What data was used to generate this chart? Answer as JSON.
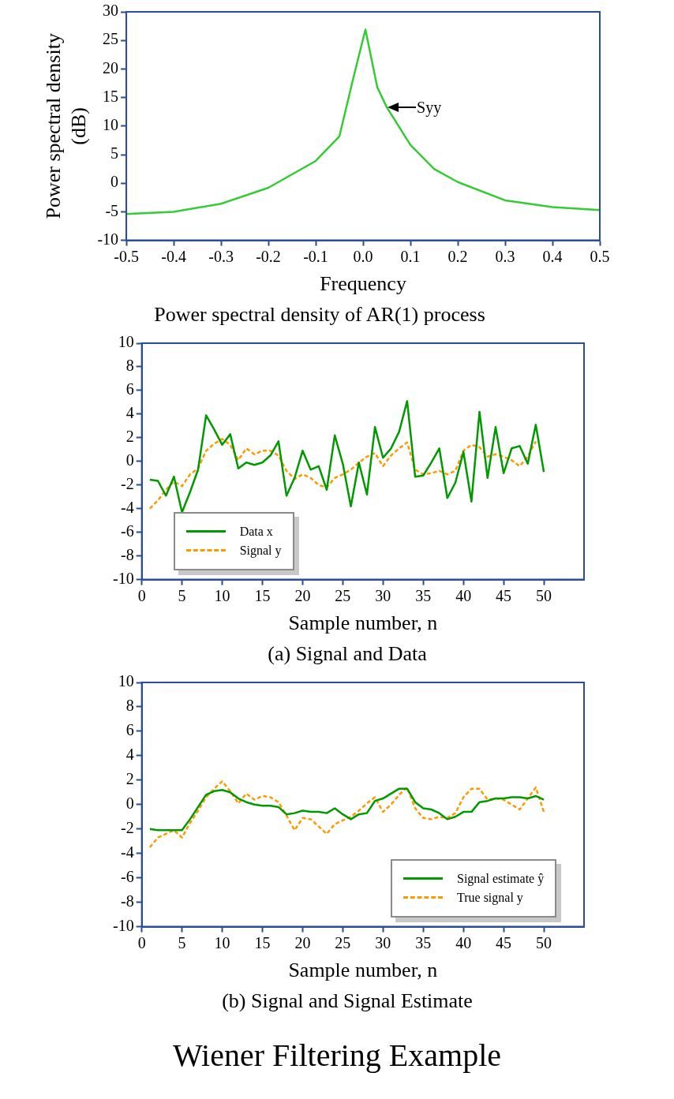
{
  "chart_data": [
    {
      "type": "line",
      "title": "Power spectral density of AR(1) process",
      "xlabel": "Frequency",
      "ylabel": "Power spectral density (dB)",
      "xlim": [
        -0.5,
        0.5
      ],
      "ylim": [
        -10,
        30
      ],
      "xticks": [
        -0.5,
        -0.4,
        -0.3,
        -0.2,
        -0.1,
        {
          "value": 0,
          "label": "0.0"
        },
        0.1,
        0.2,
        0.3,
        0.4,
        0.5
      ],
      "yticks": [
        -10,
        -5,
        0,
        5,
        10,
        15,
        20,
        25,
        30
      ],
      "grid": false,
      "legend": false,
      "series": [
        {
          "color": "#33cc33",
          "x": [
            -0.5,
            -0.4,
            -0.3,
            -0.2,
            -0.1,
            -0.05,
            -0.02,
            0.005,
            0.03,
            0.05,
            0.1,
            0.15,
            0.2,
            0.3,
            0.4,
            0.5
          ],
          "values": [
            -5.4,
            -5.0,
            -3.6,
            -0.8,
            3.9,
            8.2,
            18.6,
            26.9,
            16.8,
            13.3,
            6.7,
            2.5,
            0.2,
            -3.0,
            -4.2,
            -4.7
          ]
        }
      ],
      "annotations": [
        {
          "text": "Syy",
          "x": 0.05,
          "y": 13.3
        }
      ]
    },
    {
      "type": "line",
      "title": "(a) Signal and Data",
      "xlabel": "Sample number, n",
      "xlim": [
        0,
        55
      ],
      "ylim": [
        -10,
        10
      ],
      "xticks": [
        0,
        5,
        10,
        15,
        20,
        25,
        30,
        35,
        40,
        45,
        50
      ],
      "yticks": [
        -10,
        -8,
        -6,
        -4,
        -2,
        0,
        2,
        4,
        6,
        8,
        10
      ],
      "grid": false,
      "legend": "bottom left",
      "series": [
        {
          "name": "Data x",
          "color": "#009900",
          "line_style": "solid",
          "x": [
            1,
            2,
            3,
            4,
            5,
            6,
            7,
            8,
            9,
            10,
            11,
            12,
            13,
            14,
            15,
            16,
            17,
            18,
            19,
            20,
            21,
            22,
            23,
            24,
            25,
            26,
            27,
            28,
            29,
            30,
            31,
            32,
            33,
            34,
            35,
            36,
            37,
            38,
            39,
            40,
            41,
            42,
            43,
            44,
            45,
            46,
            47,
            48,
            49,
            50
          ],
          "values": [
            -1.55,
            -1.65,
            -2.9,
            -1.3,
            -4.3,
            -2.6,
            -0.7,
            3.9,
            2.7,
            1.4,
            2.3,
            -0.6,
            -0.1,
            -0.3,
            -0.1,
            0.5,
            1.7,
            -2.9,
            -1.4,
            0.9,
            -0.7,
            -0.4,
            -2.4,
            2.2,
            -0.2,
            -3.8,
            -0.1,
            -2.8,
            2.9,
            0.3,
            1.1,
            2.5,
            5.1,
            -1.3,
            -1.2,
            -0.1,
            1.1,
            -3.1,
            -1.8,
            0.8,
            -3.4,
            4.2,
            -1.4,
            2.9,
            -1.0,
            1.1,
            1.3,
            -0.2,
            3.1,
            -0.9
          ]
        },
        {
          "name": "Signal y",
          "color": "#ff9900",
          "line_style": "dashed",
          "x": [
            1,
            2,
            3,
            4,
            5,
            6,
            7,
            8,
            9,
            10,
            11,
            12,
            13,
            14,
            15,
            16,
            17,
            18,
            19,
            20,
            21,
            22,
            23,
            24,
            25,
            26,
            27,
            28,
            29,
            30,
            31,
            32,
            33,
            34,
            35,
            36,
            37,
            38,
            39,
            40,
            41,
            42,
            43,
            44,
            45,
            46,
            47,
            48,
            49
          ],
          "values": [
            -4.0,
            -3.3,
            -2.4,
            -1.7,
            -2.1,
            -1.1,
            -0.6,
            0.9,
            1.5,
            1.9,
            1.4,
            0.1,
            1.1,
            0.6,
            0.9,
            0.9,
            0.5,
            -0.8,
            -1.5,
            -1.1,
            -1.4,
            -2.0,
            -2.2,
            -1.4,
            -1.1,
            -0.7,
            -0.1,
            0.4,
            0.7,
            -0.4,
            0.5,
            1.1,
            1.6,
            -0.7,
            -1.1,
            -1.0,
            -0.8,
            -1.1,
            -0.8,
            0.9,
            1.4,
            1.2,
            0.4,
            0.6,
            0.4,
            0.1,
            -0.4,
            0.4,
            1.7
          ]
        }
      ]
    },
    {
      "type": "line",
      "title": "(b) Signal and Signal Estimate",
      "xlabel": "Sample number, n",
      "xlim": [
        0,
        55
      ],
      "ylim": [
        -10,
        10
      ],
      "xticks": [
        0,
        5,
        10,
        15,
        20,
        25,
        30,
        35,
        40,
        45,
        50
      ],
      "yticks": [
        -10,
        -8,
        -6,
        -4,
        -2,
        0,
        2,
        4,
        6,
        8,
        10
      ],
      "grid": false,
      "legend": "bottom right",
      "series": [
        {
          "name": "Signal estimate ŷ",
          "color": "#009900",
          "line_style": "solid",
          "x": [
            1,
            2,
            3,
            4,
            5,
            6,
            7,
            8,
            9,
            10,
            11,
            12,
            13,
            14,
            15,
            16,
            17,
            18,
            19,
            20,
            21,
            22,
            23,
            24,
            25,
            26,
            27,
            28,
            29,
            30,
            31,
            32,
            33,
            34,
            35,
            36,
            37,
            38,
            39,
            40,
            41,
            42,
            43,
            44,
            45,
            46,
            47,
            48,
            49,
            50
          ],
          "values": [
            -2.0,
            -2.1,
            -2.1,
            -2.1,
            -2.1,
            -1.2,
            -0.2,
            0.8,
            1.1,
            1.2,
            1.0,
            0.5,
            0.2,
            0,
            -0.1,
            -0.1,
            -0.2,
            -0.8,
            -0.7,
            -0.5,
            -0.6,
            -0.6,
            -0.7,
            -0.3,
            -0.8,
            -1.2,
            -0.8,
            -0.7,
            0.3,
            0.5,
            0.9,
            1.3,
            1.3,
            0.2,
            -0.3,
            -0.4,
            -0.7,
            -1.2,
            -1.0,
            -0.6,
            -0.6,
            0.2,
            0.3,
            0.5,
            0.5,
            0.6,
            0.6,
            0.5,
            0.7,
            0.4
          ]
        },
        {
          "name": "True signal y",
          "color": "#ff9900",
          "line_style": "dashed",
          "x": [
            1,
            2,
            3,
            4,
            5,
            6,
            7,
            8,
            9,
            10,
            11,
            12,
            13,
            14,
            15,
            16,
            17,
            18,
            19,
            20,
            21,
            22,
            23,
            24,
            25,
            26,
            27,
            28,
            29,
            30,
            31,
            32,
            33,
            34,
            35,
            36,
            37,
            38,
            39,
            40,
            41,
            42,
            43,
            44,
            45,
            46,
            47,
            48,
            49,
            50
          ],
          "values": [
            -3.5,
            -2.7,
            -2.4,
            -2.1,
            -2.7,
            -1.5,
            -0.5,
            0.6,
            1.3,
            1.9,
            1.1,
            0.1,
            0.9,
            0.4,
            0.7,
            0.6,
            0.2,
            -0.9,
            -2.1,
            -1.1,
            -1.2,
            -1.8,
            -2.4,
            -1.6,
            -1.3,
            -1.0,
            -0.5,
            0.1,
            0.6,
            -0.6,
            0,
            0.8,
            1.4,
            -0.3,
            -1.1,
            -1.2,
            -1.0,
            -1.1,
            -0.7,
            0.6,
            1.3,
            1.3,
            0.4,
            0.5,
            0.4,
            0,
            -0.4,
            0.5,
            1.4,
            -0.6
          ]
        }
      ],
      "annotations": [
        "Wiener Filtering Example"
      ]
    }
  ]
}
